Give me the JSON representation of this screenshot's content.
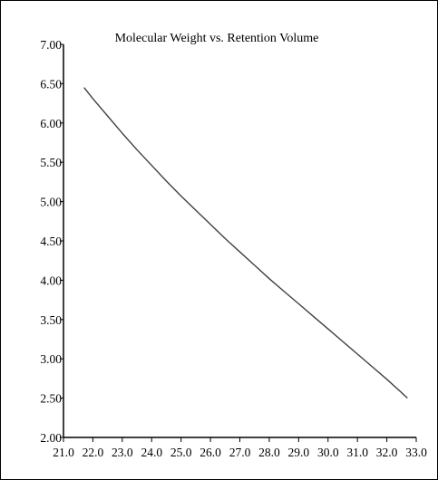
{
  "chart_data": {
    "type": "line",
    "title": "Molecular Weight vs. Retention Volume",
    "xlabel": "",
    "ylabel": "",
    "xlim": [
      21.0,
      33.0
    ],
    "ylim": [
      2.0,
      7.0
    ],
    "x_ticks": [
      "21.0",
      "22.0",
      "23.0",
      "24.0",
      "25.0",
      "26.0",
      "27.0",
      "28.0",
      "29.0",
      "30.0",
      "31.0",
      "32.0",
      "33.0"
    ],
    "y_ticks": [
      "7.00",
      "6.50",
      "6.00",
      "5.50",
      "5.00",
      "4.50",
      "4.00",
      "3.50",
      "3.00",
      "2.50",
      "2.00"
    ],
    "grid": false,
    "legend": "none",
    "series": [
      {
        "color": "#404040",
        "x": [
          21.7,
          22.0,
          22.5,
          23.0,
          23.5,
          24.0,
          24.5,
          25.0,
          25.5,
          26.0,
          26.5,
          27.0,
          27.5,
          28.0,
          28.5,
          29.0,
          29.5,
          30.0,
          30.5,
          31.0,
          31.5,
          32.0,
          32.5,
          32.7
        ],
        "y": [
          6.45,
          6.31,
          6.09,
          5.87,
          5.66,
          5.46,
          5.26,
          5.07,
          4.89,
          4.71,
          4.53,
          4.36,
          4.19,
          4.02,
          3.86,
          3.7,
          3.54,
          3.38,
          3.22,
          3.06,
          2.9,
          2.74,
          2.57,
          2.5
        ]
      }
    ]
  }
}
